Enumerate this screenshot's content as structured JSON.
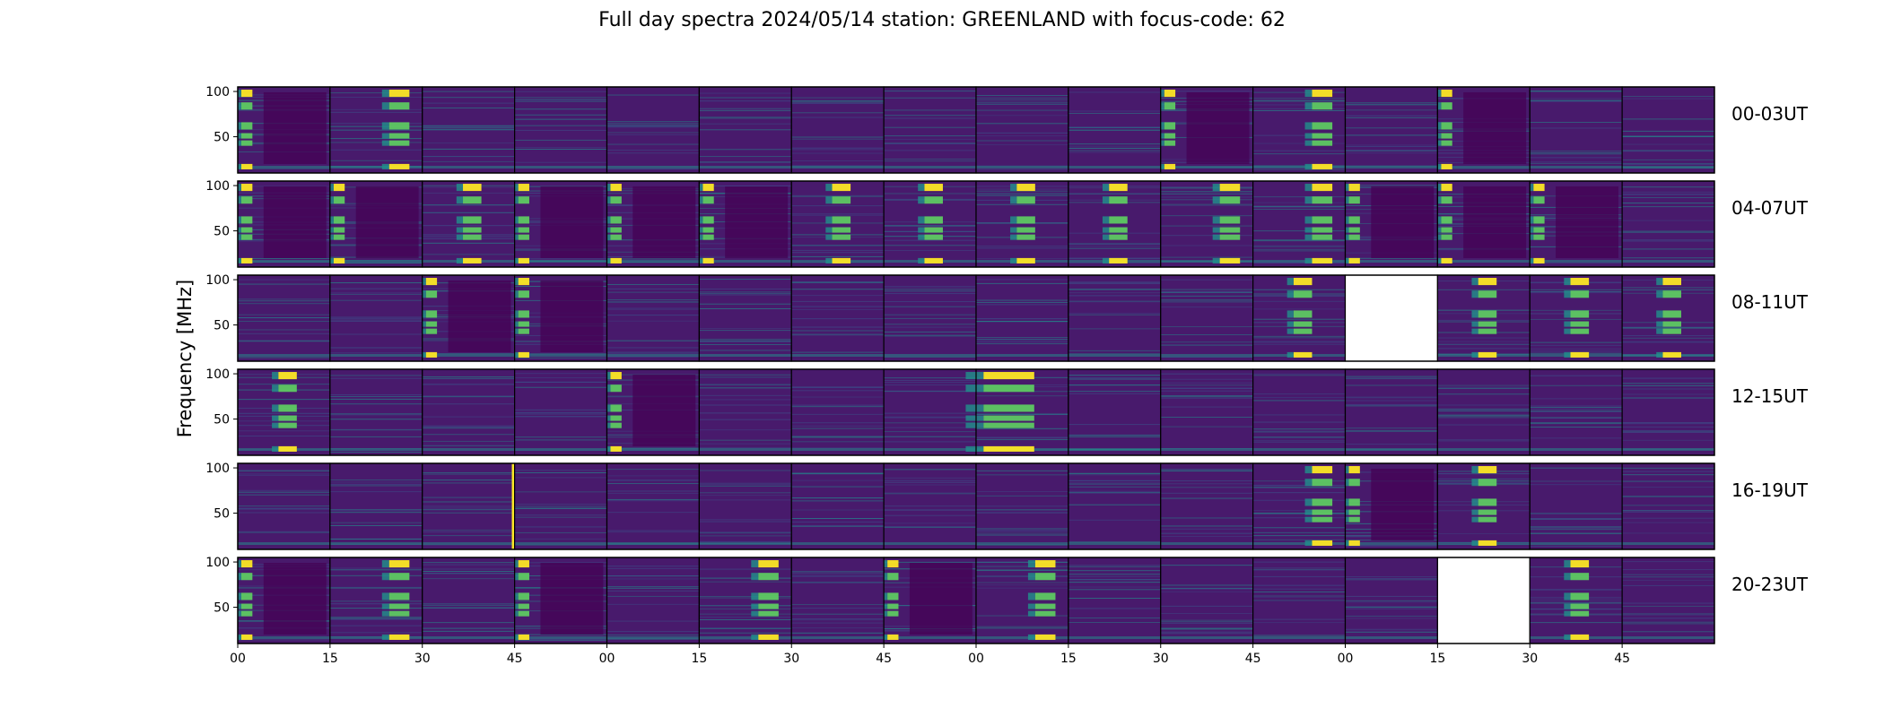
{
  "chart_data": {
    "type": "heatmap",
    "title": "Full day spectra 2024/05/14 station: GREENLAND with focus-code: 62",
    "ylabel": "Frequency [MHz]",
    "xlabel": "",
    "colormap": "viridis",
    "y_ticks": [
      "100",
      "50"
    ],
    "y_tick_values": [
      100,
      50
    ],
    "ylim": [
      10,
      105
    ],
    "x_ticks": [
      "00",
      "15",
      "30",
      "45",
      "00",
      "15",
      "30",
      "45",
      "00",
      "15",
      "30",
      "45",
      "00",
      "15",
      "30",
      "45"
    ],
    "columns_per_row": 16,
    "minutes_per_panel": 15,
    "rows": [
      {
        "label": "00-03UT",
        "panels": [
          "burst-left",
          "burst-right",
          "quiet",
          "quiet",
          "quiet",
          "quiet",
          "quiet",
          "quiet",
          "quiet",
          "quiet",
          "burst-left",
          "burst-right",
          "quiet",
          "burst-left",
          "quiet",
          "quiet"
        ]
      },
      {
        "label": "04-07UT",
        "panels": [
          "burst-left",
          "burst-left",
          "burst-mid",
          "burst-left",
          "burst-left",
          "burst-left",
          "burst-mid",
          "burst-mid",
          "burst-mid",
          "burst-mid",
          "burst-right",
          "burst-right",
          "burst-left",
          "burst-left",
          "burst-left",
          "quiet"
        ]
      },
      {
        "label": "08-11UT",
        "panels": [
          "quiet",
          "quiet",
          "burst-left",
          "burst-left",
          "quiet",
          "quiet",
          "quiet",
          "quiet",
          "quiet",
          "quiet",
          "quiet",
          "burst-mid",
          "missing",
          "burst-mid",
          "burst-mid",
          "burst-mid"
        ]
      },
      {
        "label": "12-15UT",
        "panels": [
          "burst-mid",
          "quiet",
          "quiet",
          "quiet",
          "burst-left",
          "quiet",
          "quiet",
          "quiet",
          "burst-full",
          "quiet",
          "quiet",
          "quiet",
          "quiet",
          "quiet",
          "quiet",
          "quiet"
        ]
      },
      {
        "label": "16-19UT",
        "panels": [
          "quiet",
          "quiet",
          "spike",
          "quiet",
          "quiet",
          "quiet",
          "quiet",
          "quiet",
          "quiet",
          "quiet",
          "quiet",
          "burst-right",
          "burst-left",
          "burst-mid",
          "quiet",
          "quiet"
        ]
      },
      {
        "label": "20-23UT",
        "panels": [
          "burst-left",
          "burst-right",
          "quiet",
          "burst-left",
          "quiet",
          "burst-right",
          "quiet",
          "burst-left",
          "burst-right",
          "quiet",
          "quiet",
          "quiet",
          "quiet",
          "missing",
          "burst-mid",
          "quiet"
        ]
      }
    ],
    "colors": {
      "background": "#481a6c",
      "dark": "#440154",
      "mid": "#3b528b",
      "teal": "#21918c",
      "green": "#5ec962",
      "yellow": "#fde725",
      "missing": "#ffffff"
    }
  }
}
